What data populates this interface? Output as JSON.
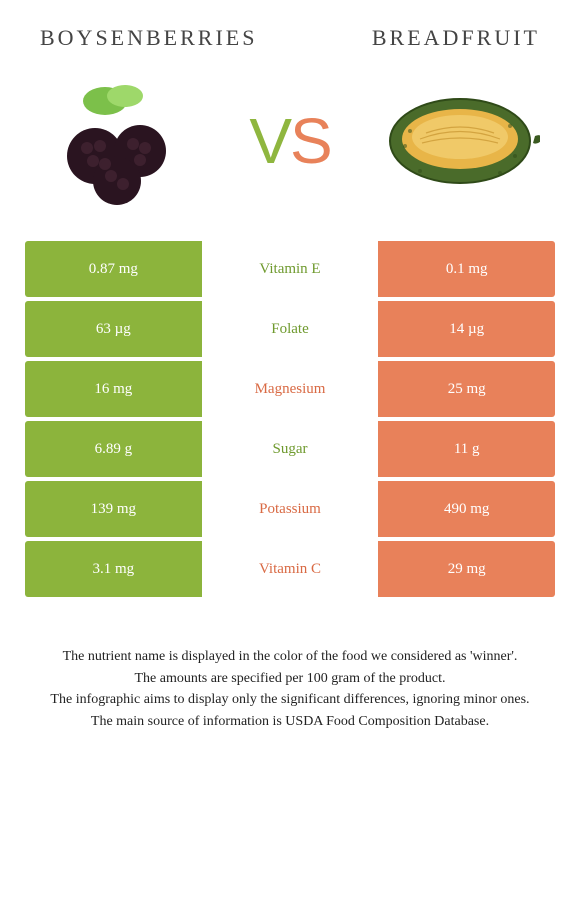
{
  "header": {
    "left_title": "BOYSENBERRIES",
    "right_title": "BREADFRUIT",
    "vs_v": "V",
    "vs_s": "S"
  },
  "colors": {
    "left": "#8cb43c",
    "right": "#e8815a",
    "left_text": "#6f9a2e",
    "right_text": "#d96a44"
  },
  "rows": [
    {
      "left": "0.87 mg",
      "label": "Vitamin E",
      "right": "0.1 mg",
      "winner": "left"
    },
    {
      "left": "63 µg",
      "label": "Folate",
      "right": "14 µg",
      "winner": "left"
    },
    {
      "left": "16 mg",
      "label": "Magnesium",
      "right": "25 mg",
      "winner": "right"
    },
    {
      "left": "6.89 g",
      "label": "Sugar",
      "right": "11 g",
      "winner": "left"
    },
    {
      "left": "139 mg",
      "label": "Potassium",
      "right": "490 mg",
      "winner": "right"
    },
    {
      "left": "3.1 mg",
      "label": "Vitamin C",
      "right": "29 mg",
      "winner": "right"
    }
  ],
  "footer": {
    "line1": "The nutrient name is displayed in the color of the food we considered as 'winner'.",
    "line2": "The amounts are specified per 100 gram of the product.",
    "line3": "The infographic aims to display only the significant differences, ignoring minor ones.",
    "line4": "The main source of information is USDA Food Composition Database."
  }
}
